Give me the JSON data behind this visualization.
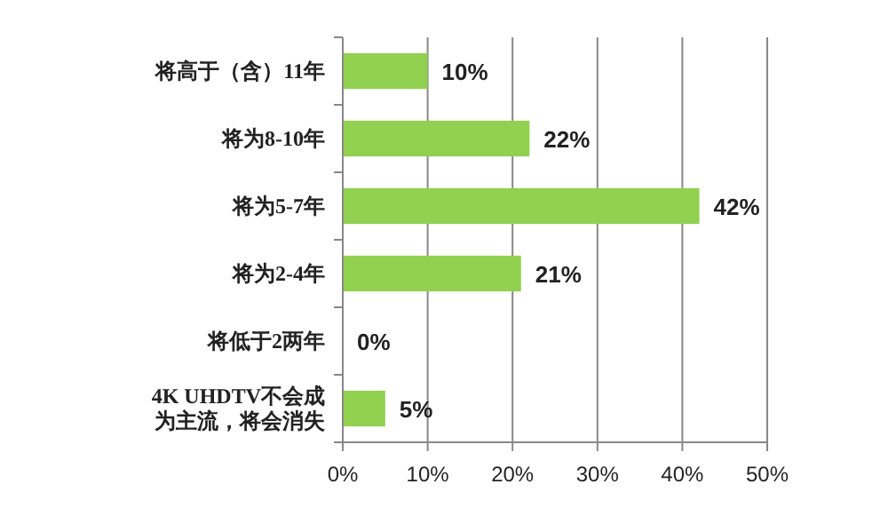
{
  "chart_data": {
    "type": "bar",
    "orientation": "horizontal",
    "categories": [
      "将高于（含）11年",
      "将为8-10年",
      "将为5-7年",
      "将为2-4年",
      "将低于2两年",
      "4K UHDTV不会成为主流，将会消失"
    ],
    "values": [
      10,
      22,
      42,
      21,
      0,
      5
    ],
    "value_labels": [
      "10%",
      "22%",
      "42%",
      "21%",
      "0%",
      "5%"
    ],
    "color": "#92d050",
    "xlim": [
      0,
      50
    ],
    "xticks": [
      {
        "value": 0,
        "label": "0%"
      },
      {
        "value": 10,
        "label": "10%"
      },
      {
        "value": 20,
        "label": "20%"
      },
      {
        "value": 30,
        "label": "30%"
      },
      {
        "value": 40,
        "label": "40%"
      },
      {
        "value": 50,
        "label": "50%"
      }
    ],
    "grid": "x"
  }
}
